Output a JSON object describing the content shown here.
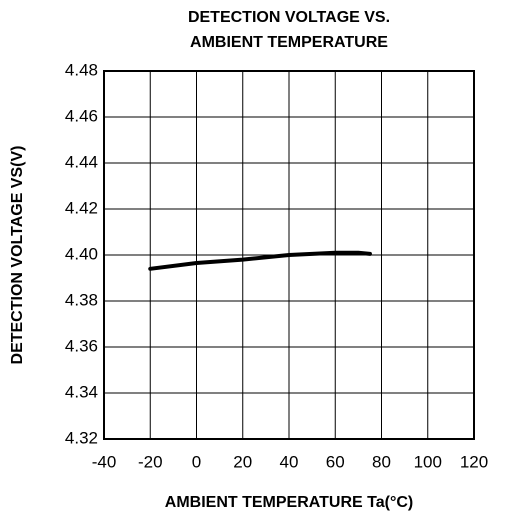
{
  "chart_data": {
    "type": "line",
    "title": [
      "DETECTION VOLTAGE VS.",
      "AMBIENT TEMPERATURE"
    ],
    "x_label": "AMBIENT TEMPERATURE Ta(°C)",
    "y_label": "DETECTION VOLTAGE VS(V)",
    "x": [
      -20,
      0,
      20,
      40,
      60,
      70,
      75
    ],
    "series": [
      {
        "color": "#000000",
        "values": [
          4.394,
          4.3965,
          4.398,
          4.4,
          4.401,
          4.401,
          4.4005
        ]
      }
    ],
    "xlim": [
      -40,
      120
    ],
    "xticks": [
      -40,
      -20,
      0,
      20,
      40,
      60,
      80,
      100,
      120
    ],
    "ylim": [
      4.32,
      4.48
    ],
    "yticks": [
      4.32,
      4.34,
      4.36,
      4.38,
      {
        "value": 4.4,
        "label": "4.40"
      },
      4.42,
      4.44,
      4.46,
      4.48
    ],
    "grid": true
  }
}
